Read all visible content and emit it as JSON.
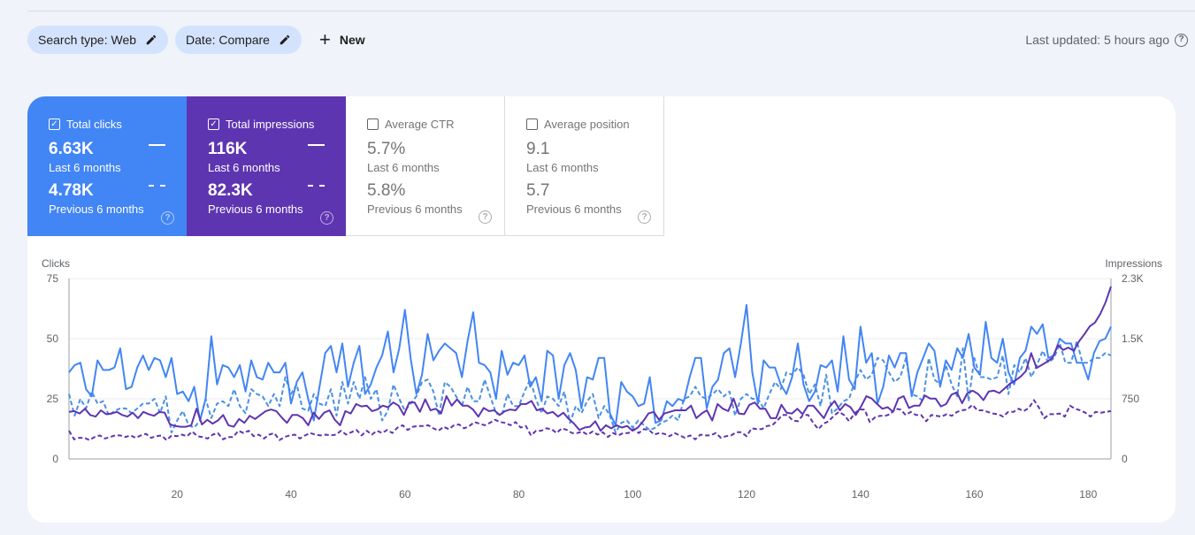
{
  "filters": {
    "search_type": "Search type: Web",
    "date": "Date: Compare",
    "new_label": "New"
  },
  "status": {
    "last_updated": "Last updated: 5 hours ago"
  },
  "metrics": [
    {
      "name": "Total clicks",
      "value": "6.63K",
      "period": "Last 6 months",
      "prev_value": "4.78K",
      "prev_period": "Previous 6 months",
      "checked": true
    },
    {
      "name": "Total impressions",
      "value": "116K",
      "period": "Last 6 months",
      "prev_value": "82.3K",
      "prev_period": "Previous 6 months",
      "checked": true
    },
    {
      "name": "Average CTR",
      "value": "5.7%",
      "period": "Last 6 months",
      "prev_value": "5.8%",
      "prev_period": "Previous 6 months",
      "checked": false
    },
    {
      "name": "Average position",
      "value": "9.1",
      "period": "Last 6 months",
      "prev_value": "5.7",
      "prev_period": "Previous 6 months",
      "checked": false
    }
  ],
  "colors": {
    "clicks": "#4285f4",
    "impressions": "#5e35b1",
    "clicks_prev": "#4a90e2",
    "impressions_prev": "#5e35b1"
  },
  "chart_data": {
    "type": "line",
    "ylabel": "Clicks",
    "y2label": "Impressions",
    "xlim": [
      1,
      184
    ],
    "ylim": [
      0,
      75
    ],
    "y2lim": [
      0,
      2300
    ],
    "xticks": [
      "20",
      "40",
      "60",
      "80",
      "100",
      "120",
      "140",
      "160",
      "180"
    ],
    "yticks": [
      "0",
      "25",
      "50",
      "75"
    ],
    "y2ticks": [
      "0",
      "750",
      "1.5K",
      "2.3K"
    ],
    "grid": true,
    "series": [
      {
        "name": "Total clicks",
        "period": "Last 6 months",
        "axis": "left",
        "style": "solid",
        "values": [
          36,
          39,
          40,
          29,
          26,
          41,
          37,
          37,
          38,
          46,
          29,
          30,
          38,
          43,
          37,
          42,
          41,
          34,
          42,
          27,
          28,
          24,
          30,
          16,
          25,
          51,
          31,
          39,
          38,
          34,
          39,
          28,
          41,
          34,
          33,
          40,
          36,
          36,
          40,
          23,
          32,
          36,
          25,
          16,
          30,
          44,
          47,
          36,
          48,
          30,
          40,
          47,
          27,
          31,
          38,
          43,
          53,
          36,
          46,
          62,
          42,
          27,
          35,
          52,
          41,
          45,
          48,
          46,
          44,
          34,
          49,
          61,
          40,
          39,
          36,
          25,
          45,
          35,
          40,
          39,
          43,
          30,
          34,
          24,
          45,
          43,
          25,
          39,
          44,
          37,
          21,
          34,
          33,
          42,
          42,
          19,
          14,
          32,
          28,
          26,
          22,
          23,
          34,
          15,
          16,
          24,
          22,
          25,
          24,
          34,
          42,
          42,
          21,
          30,
          33,
          44,
          46,
          34,
          48,
          64,
          36,
          23,
          41,
          38,
          38,
          31,
          27,
          34,
          48,
          31,
          24,
          28,
          39,
          38,
          41,
          28,
          51,
          33,
          29,
          55,
          40,
          44,
          23,
          30,
          43,
          38,
          44,
          44,
          26,
          36,
          42,
          48,
          45,
          30,
          41,
          37,
          46,
          42,
          52,
          38,
          35,
          57,
          42,
          40,
          50,
          36,
          31,
          42,
          45,
          55,
          52,
          56,
          42,
          43,
          50,
          48,
          48,
          40,
          40,
          33,
          44,
          49,
          50,
          55
        ]
      },
      {
        "name": "Total clicks",
        "period": "Previous 6 months",
        "axis": "left",
        "style": "dashed",
        "values": [
          27,
          18,
          25,
          21,
          28,
          23,
          24,
          18,
          20,
          21,
          21,
          19,
          21,
          23,
          23,
          25,
          19,
          26,
          11,
          16,
          20,
          14,
          13,
          16,
          25,
          17,
          23,
          24,
          22,
          29,
          22,
          19,
          29,
          27,
          26,
          22,
          27,
          22,
          34,
          27,
          31,
          21,
          20,
          27,
          23,
          22,
          29,
          18,
          32,
          23,
          32,
          25,
          34,
          25,
          29,
          16,
          20,
          31,
          25,
          20,
          23,
          26,
          32,
          33,
          28,
          18,
          32,
          30,
          26,
          22,
          30,
          24,
          24,
          33,
          26,
          19,
          18,
          27,
          22,
          22,
          28,
          33,
          25,
          19,
          26,
          25,
          22,
          28,
          15,
          22,
          19,
          24,
          27,
          17,
          22,
          18,
          11,
          15,
          16,
          13,
          16,
          14,
          12,
          13,
          15,
          16,
          18,
          16,
          25,
          26,
          30,
          26,
          25,
          27,
          29,
          26,
          28,
          18,
          25,
          27,
          25,
          25,
          21,
          27,
          32,
          29,
          36,
          35,
          38,
          35,
          27,
          31,
          22,
          35,
          19,
          21,
          24,
          25,
          32,
          37,
          33,
          35,
          42,
          41,
          36,
          32,
          34,
          42,
          27,
          26,
          24,
          42,
          33,
          31,
          39,
          31,
          26,
          46,
          24,
          42,
          34,
          34,
          33,
          34,
          43,
          27,
          39,
          36,
          42,
          34,
          39,
          45,
          40,
          42,
          48,
          40,
          40,
          49,
          40,
          40,
          42,
          42,
          44,
          43
        ]
      },
      {
        "name": "Total impressions",
        "period": "Last 6 months",
        "axis": "right",
        "style": "solid",
        "values": [
          600,
          610,
          580,
          640,
          560,
          540,
          620,
          570,
          580,
          600,
          560,
          540,
          590,
          520,
          600,
          570,
          550,
          600,
          590,
          440,
          420,
          410,
          410,
          430,
          640,
          440,
          500,
          450,
          490,
          560,
          430,
          410,
          510,
          460,
          550,
          510,
          560,
          610,
          630,
          610,
          530,
          460,
          560,
          560,
          520,
          430,
          590,
          510,
          590,
          620,
          500,
          430,
          610,
          580,
          700,
          670,
          680,
          610,
          630,
          680,
          660,
          720,
          680,
          560,
          720,
          720,
          600,
          760,
          620,
          640,
          580,
          800,
          680,
          760,
          680,
          680,
          630,
          540,
          650,
          610,
          620,
          560,
          610,
          630,
          620,
          700,
          700,
          740,
          620,
          640,
          580,
          600,
          540,
          590,
          510,
          450,
          370,
          400,
          410,
          480,
          360,
          430,
          390,
          430,
          400,
          420,
          360,
          400,
          480,
          580,
          600,
          500,
          580,
          600,
          620,
          620,
          620,
          680,
          520,
          580,
          620,
          490,
          700,
          640,
          610,
          770,
          580,
          570,
          690,
          720,
          640,
          640,
          520,
          520,
          690,
          590,
          580,
          640,
          570,
          680,
          680,
          600,
          520,
          660,
          740,
          620,
          700,
          660,
          560,
          670,
          800,
          770,
          700,
          640,
          660,
          600,
          770,
          800,
          650,
          680,
          680,
          810,
          770,
          770,
          670,
          700,
          820,
          850,
          710,
          840,
          870,
          830,
          750,
          860,
          870,
          840,
          900,
          960,
          1000,
          1050,
          1120,
          1350,
          1160,
          1200,
          1240,
          1290,
          1450,
          1390,
          1420,
          1380,
          1500,
          1590,
          1690,
          1740,
          1850,
          2000,
          2200
        ]
      },
      {
        "name": "Total impressions",
        "period": "Previous 6 months",
        "axis": "right",
        "style": "dashed",
        "values": [
          360,
          250,
          270,
          270,
          240,
          280,
          300,
          260,
          280,
          300,
          300,
          280,
          300,
          270,
          300,
          320,
          270,
          290,
          300,
          240,
          300,
          290,
          310,
          290,
          350,
          290,
          280,
          260,
          310,
          330,
          250,
          280,
          280,
          360,
          330,
          360,
          290,
          310,
          260,
          310,
          330,
          240,
          280,
          300,
          310,
          260,
          300,
          330,
          310,
          300,
          310,
          300,
          310,
          360,
          310,
          340,
          370,
          300,
          360,
          310,
          360,
          330,
          370,
          330,
          400,
          430,
          370,
          410,
          420,
          420,
          430,
          390,
          360,
          410,
          380,
          430,
          440,
          390,
          420,
          470,
          450,
          430,
          460,
          500,
          470,
          460,
          430,
          470,
          400,
          420,
          300,
          360,
          360,
          390,
          380,
          330,
          390,
          370,
          330,
          330,
          350,
          310,
          350,
          310,
          340,
          280,
          330,
          300,
          330,
          330,
          380,
          330,
          380,
          370,
          310,
          330,
          320,
          290,
          330,
          300,
          270,
          300,
          250,
          310,
          300,
          300,
          330,
          270,
          290,
          300,
          340,
          340,
          290,
          390,
          380,
          380,
          420,
          430,
          490,
          560,
          560,
          490,
          480,
          560,
          560,
          460,
          380,
          450,
          480,
          550,
          600,
          560,
          480,
          580,
          630,
          630,
          470,
          530,
          550,
          550,
          570,
          640,
          630,
          560,
          600,
          560,
          560,
          480,
          560,
          550,
          540,
          570,
          550,
          600,
          620,
          630,
          690,
          620,
          620,
          600,
          580,
          570,
          540,
          600,
          600,
          640,
          610,
          650,
          750,
          650,
          520,
          570,
          570,
          580,
          540,
          680,
          640,
          620,
          590,
          540,
          600,
          590,
          600,
          610
        ]
      }
    ]
  }
}
